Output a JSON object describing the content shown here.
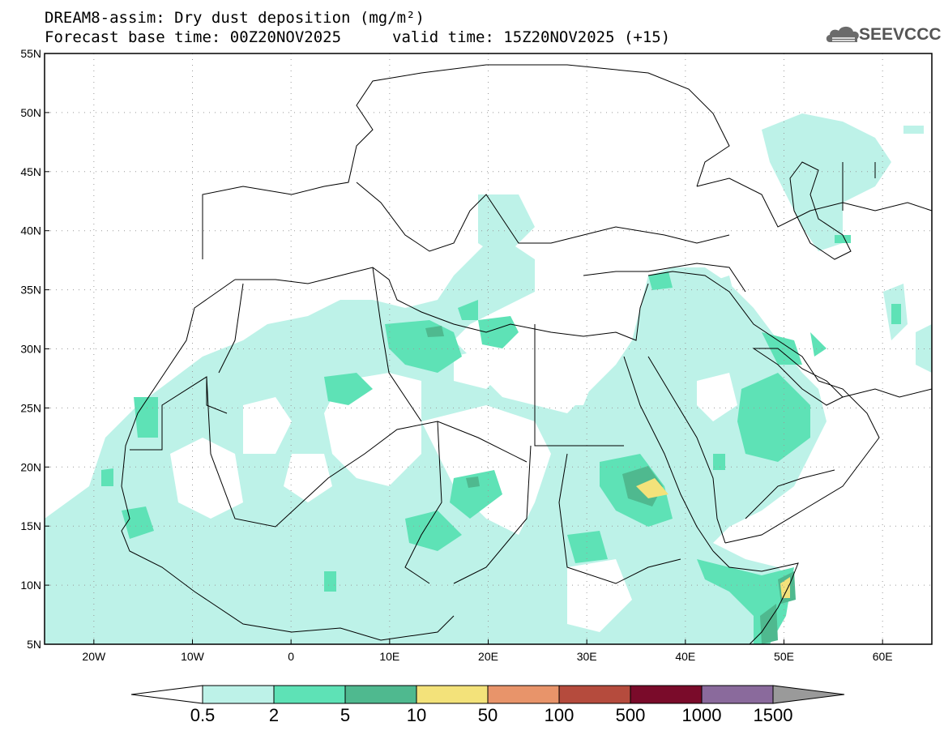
{
  "header": {
    "title": "DREAM8-assim: Dry dust deposition (mg/m²)",
    "base_time": "Forecast base time: 00Z20NOV2025",
    "valid_time": "valid time: 15Z20NOV2025 (+15)"
  },
  "logo": {
    "text": "SEEVCCC",
    "icon": "cloud-icon"
  },
  "map": {
    "lon_range": [
      -25,
      65
    ],
    "lat_range": [
      5,
      55
    ],
    "lat_ticks": [
      "5N",
      "10N",
      "15N",
      "20N",
      "25N",
      "30N",
      "35N",
      "40N",
      "45N",
      "50N",
      "55N"
    ],
    "lon_ticks": [
      "20W",
      "10W",
      "0",
      "10E",
      "20E",
      "30E",
      "40E",
      "50E",
      "60E"
    ],
    "grid": true
  },
  "colorbar": {
    "levels": [
      "0.5",
      "2",
      "5",
      "10",
      "50",
      "100",
      "500",
      "1000",
      "1500"
    ],
    "colors": [
      "#bdf2e8",
      "#5ee2b6",
      "#4fb98f",
      "#f3e27a",
      "#e8946a",
      "#b54b3d",
      "#7a0b2a",
      "#8a6a9c"
    ],
    "under_color": "#ffffff",
    "over_color": "#9a9a9a"
  }
}
